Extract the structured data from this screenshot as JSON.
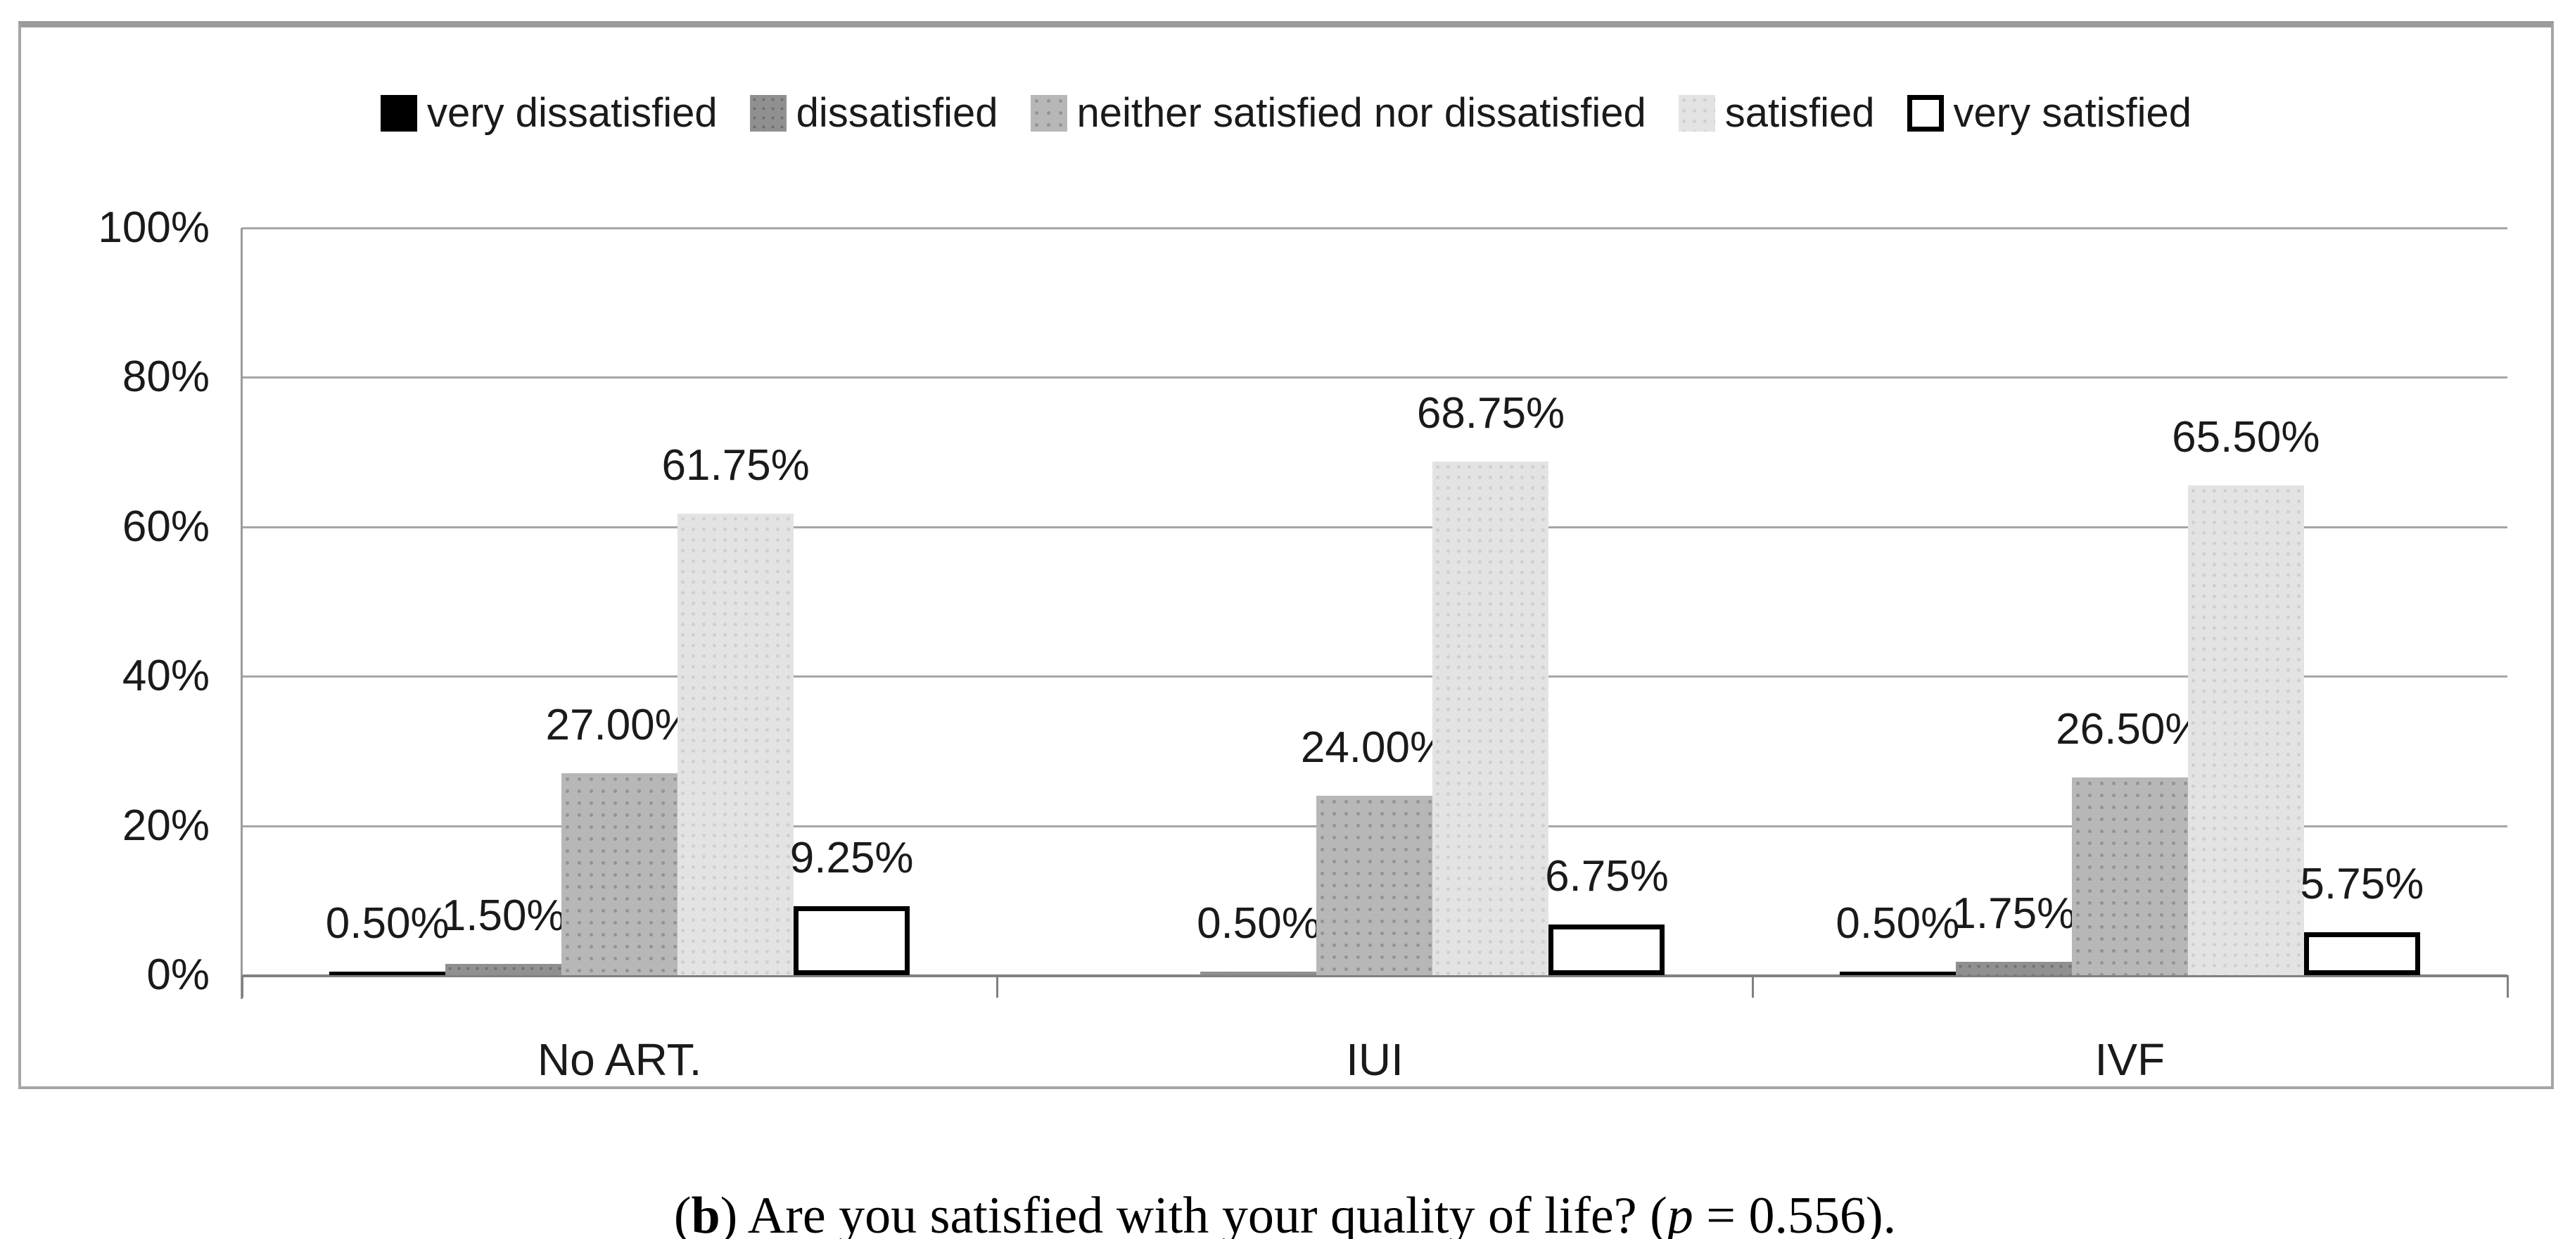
{
  "chart_data": {
    "type": "bar",
    "title": "",
    "categories": [
      "No ART.",
      "IUI",
      "IVF"
    ],
    "legend": [
      "very dissatisfied",
      "dissatisfied",
      "neither satisfied nor dissatisfied",
      "satisfied",
      "very satisfied"
    ],
    "series": [
      {
        "name": "very dissatisfied",
        "values": [
          0.5,
          0.0,
          0.5
        ],
        "labels": [
          "0.50%",
          "",
          "0.50%"
        ]
      },
      {
        "name": "dissatisfied",
        "values": [
          1.5,
          0.5,
          1.75
        ],
        "labels": [
          "1.50%",
          "0.50%",
          "1.75%"
        ]
      },
      {
        "name": "neither satisfied nor dissatisfied",
        "values": [
          27.0,
          24.0,
          26.5
        ],
        "labels": [
          "27.00%",
          "24.00%",
          "26.50%"
        ]
      },
      {
        "name": "satisfied",
        "values": [
          61.75,
          68.75,
          65.5
        ],
        "labels": [
          "61.75%",
          "68.75%",
          "65.50%"
        ]
      },
      {
        "name": "very satisfied",
        "values": [
          9.25,
          6.75,
          5.75
        ],
        "labels": [
          "9.25%",
          "6.75%",
          "5.75%"
        ]
      }
    ],
    "xlabel": "",
    "ylabel": "",
    "ylim": [
      0,
      100
    ],
    "yticks": [
      "0%",
      "20%",
      "40%",
      "60%",
      "80%",
      "100%"
    ],
    "grid": true,
    "legend_position": "top",
    "colors": {
      "very_dissatisfied": "#000000",
      "dissatisfied": "#909090",
      "neither": "#b7b7b7",
      "satisfied": "#e3e3e3",
      "very_satisfied_fill": "#ffffff",
      "very_satisfied_border": "#000000",
      "gridline": "#a6a6a6",
      "frame_border": "#a6a6a6"
    }
  },
  "caption": {
    "open_paren": "(",
    "panel_letter": "b",
    "after_letter": ") ",
    "question": "Are you satisfied with your quality of life? (",
    "p_symbol": "p",
    "p_value": " = 0.556)."
  }
}
